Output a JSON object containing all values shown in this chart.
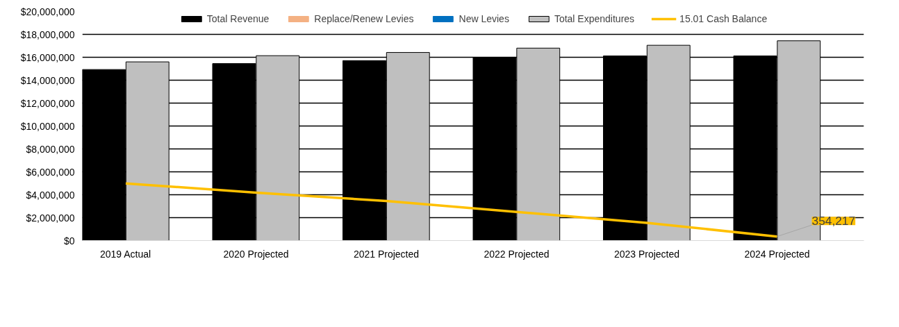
{
  "chart_data": {
    "type": "bar",
    "categories": [
      "2019 Actual",
      "2020 Projected",
      "2021 Projected",
      "2022 Projected",
      "2023 Projected",
      "2024 Projected"
    ],
    "series": [
      {
        "name": "Total Revenue",
        "color": "#000000",
        "values": [
          14930000,
          15450000,
          15710000,
          15980000,
          16120000,
          16120000
        ]
      },
      {
        "name": "Replace/Renew Levies",
        "color": "#f4b183",
        "values": [
          0,
          0,
          0,
          0,
          0,
          0
        ]
      },
      {
        "name": "New Levies",
        "color": "#0070c0",
        "values": [
          0,
          0,
          0,
          0,
          0,
          0
        ]
      },
      {
        "name": "Total Expenditures",
        "color": "#bfbfbf",
        "values": [
          15600000,
          16140000,
          16420000,
          16800000,
          17050000,
          17440000
        ]
      },
      {
        "name": "15.01 Cash Balance",
        "type": "line",
        "color": "#ffc000",
        "values": [
          4990000,
          4180000,
          3450000,
          2500000,
          1550000,
          354217
        ]
      }
    ],
    "annotations": [
      {
        "text": "354,217",
        "x": "2024 Projected",
        "y": 354217
      }
    ],
    "ylim": [
      0,
      20000000
    ],
    "yticks": [
      {
        "value": 0,
        "label": "$0"
      },
      {
        "value": 2000000,
        "label": "$2,000,000"
      },
      {
        "value": 4000000,
        "label": "$4,000,000"
      },
      {
        "value": 6000000,
        "label": "$6,000,000"
      },
      {
        "value": 8000000,
        "label": "$8,000,000"
      },
      {
        "value": 10000000,
        "label": "$10,000,000"
      },
      {
        "value": 12000000,
        "label": "$12,000,000"
      },
      {
        "value": 14000000,
        "label": "$14,000,000"
      },
      {
        "value": 16000000,
        "label": "$16,000,000"
      },
      {
        "value": 18000000,
        "label": "$18,000,000"
      },
      {
        "value": 20000000,
        "label": "$20,000,000"
      }
    ],
    "grid": "y",
    "legend": "top"
  }
}
